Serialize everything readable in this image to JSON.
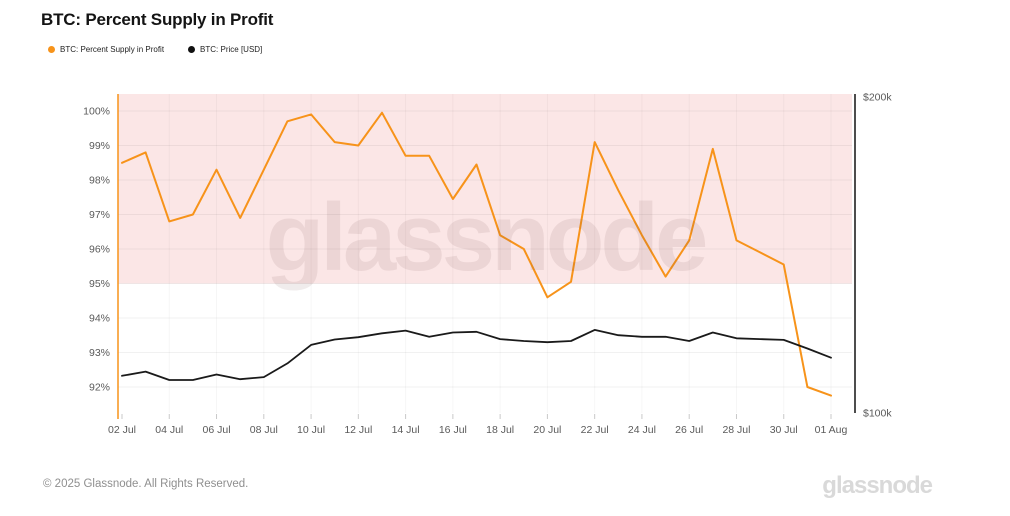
{
  "header": {
    "title": "BTC: Percent Supply in Profit"
  },
  "legend": {
    "items": [
      {
        "label": "BTC: Percent Supply in Profit",
        "color": "#f7931a"
      },
      {
        "label": "BTC: Price [USD]",
        "color": "#111111"
      }
    ]
  },
  "watermark": "glassnode",
  "footer": {
    "copyright": "© 2025 Glassnode. All Rights Reserved.",
    "logo": "glassnode"
  },
  "chart_data": {
    "type": "line",
    "title": "BTC: Percent Supply in Profit",
    "x": [
      "02 Jul",
      "03 Jul",
      "04 Jul",
      "05 Jul",
      "06 Jul",
      "07 Jul",
      "08 Jul",
      "09 Jul",
      "10 Jul",
      "11 Jul",
      "12 Jul",
      "13 Jul",
      "14 Jul",
      "15 Jul",
      "16 Jul",
      "17 Jul",
      "18 Jul",
      "19 Jul",
      "20 Jul",
      "21 Jul",
      "22 Jul",
      "23 Jul",
      "24 Jul",
      "25 Jul",
      "26 Jul",
      "27 Jul",
      "28 Jul",
      "29 Jul",
      "30 Jul",
      "31 Jul",
      "01 Aug"
    ],
    "x_tick_labels": [
      "02 Jul",
      "04 Jul",
      "06 Jul",
      "08 Jul",
      "10 Jul",
      "12 Jul",
      "14 Jul",
      "16 Jul",
      "18 Jul",
      "20 Jul",
      "22 Jul",
      "24 Jul",
      "26 Jul",
      "28 Jul",
      "30 Jul",
      "01 Aug"
    ],
    "series": [
      {
        "name": "BTC: Percent Supply in Profit",
        "axis": "left",
        "unit": "%",
        "color": "#f7931a",
        "values": [
          98.5,
          98.8,
          96.8,
          97.0,
          98.3,
          96.9,
          98.3,
          99.7,
          99.9,
          99.1,
          99.0,
          99.95,
          98.7,
          98.7,
          97.45,
          98.45,
          96.4,
          96.0,
          94.6,
          95.05,
          99.1,
          97.7,
          96.4,
          95.2,
          96.25,
          98.9,
          96.25,
          95.9,
          95.55,
          92.0,
          91.75
        ]
      },
      {
        "name": "BTC: Price [USD]",
        "axis": "right",
        "unit": "$k",
        "color": "#1a1a1a",
        "values": [
          108.5,
          109.5,
          107.5,
          107.5,
          108.8,
          107.7,
          108.2,
          111.5,
          116.1,
          117.5,
          118.1,
          119.1,
          119.8,
          118.2,
          119.3,
          119.5,
          117.6,
          117.1,
          116.8,
          117.1,
          120.0,
          118.6,
          118.2,
          118.2,
          117.1,
          119.3,
          117.8,
          117.6,
          117.4,
          115.2,
          112.9
        ]
      }
    ],
    "y_axis_left": {
      "unit": "%",
      "ticks": [
        100,
        99,
        98,
        97,
        96,
        95,
        94,
        93,
        92
      ],
      "tick_labels": [
        "100%",
        "99%",
        "98%",
        "97%",
        "96%",
        "95%",
        "94%",
        "93%",
        "92%"
      ],
      "axis_color": "#f7931a",
      "range_shown": [
        91.25,
        100.5
      ]
    },
    "y_axis_right": {
      "unit": "USD",
      "scale": "log",
      "ticks": [
        200,
        100
      ],
      "tick_labels": [
        "$200k",
        "$100k"
      ],
      "axis_color": "#4d4d4d",
      "range": [
        100,
        200
      ]
    },
    "band": {
      "from_value": 95,
      "to_chart_top": true,
      "color": "#fbe6e6"
    },
    "grid": true,
    "legend_position": "top-left",
    "background": "#ffffff"
  }
}
